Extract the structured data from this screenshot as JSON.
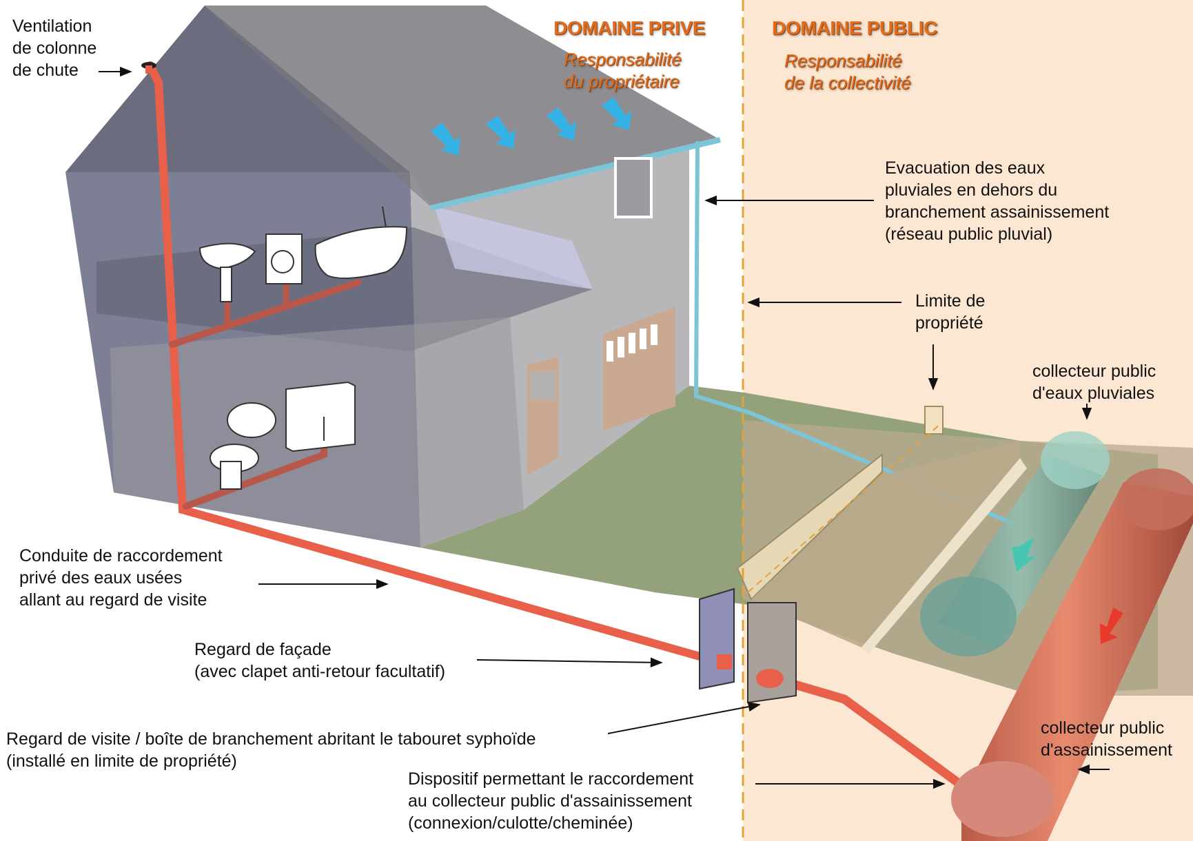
{
  "headers": {
    "private_domain": "DOMAINE PRIVE",
    "private_responsibility": [
      "Responsabilité",
      "du propriétaire"
    ],
    "public_domain": "DOMAINE PUBLIC",
    "public_responsibility": [
      "Responsabilité",
      "de la collectivité"
    ]
  },
  "labels": {
    "ventilation": [
      "Ventilation",
      "de colonne",
      "de chute"
    ],
    "rainwater": [
      "Evacuation des eaux",
      "pluviales en dehors du",
      "branchement assainissement",
      "(réseau public pluvial)"
    ],
    "property_limit": [
      "Limite de",
      "propriété"
    ],
    "storm_collector": [
      "collecteur public",
      "d'eaux pluviales"
    ],
    "private_pipe": [
      "Conduite de raccordement",
      "privé des eaux usées",
      "allant au regard de visite"
    ],
    "facade_manhole": [
      "Regard de façade",
      "(avec clapet anti-retour facultatif)"
    ],
    "inspection_manhole": [
      "Regard de visite / boîte de branchement abritant le tabouret syphoïde",
      "(installé en limite de propriété)"
    ],
    "connection_device": [
      "Dispositif permettant le raccordement",
      "au collecteur public d'assainissement",
      "(connexion/culotte/cheminée)"
    ],
    "sewer_collector": [
      "collecteur public",
      "d'assainissement"
    ]
  },
  "colors": {
    "wastewater_pipe": "#e8604a",
    "rainwater_pipe": "#7cc4d8",
    "public_zone": "#fbe7d2",
    "boundary_line": "#e0a23a",
    "header_text": "#e36c1c",
    "flow_arrow_blue": "#36b3e6"
  },
  "icons": [
    "vent-cap-icon",
    "washbasin-icon",
    "washing-machine-icon",
    "bathtub-icon",
    "toilet-icon",
    "sink-cabinet-icon",
    "garage-door-icon",
    "house-door-icon"
  ]
}
